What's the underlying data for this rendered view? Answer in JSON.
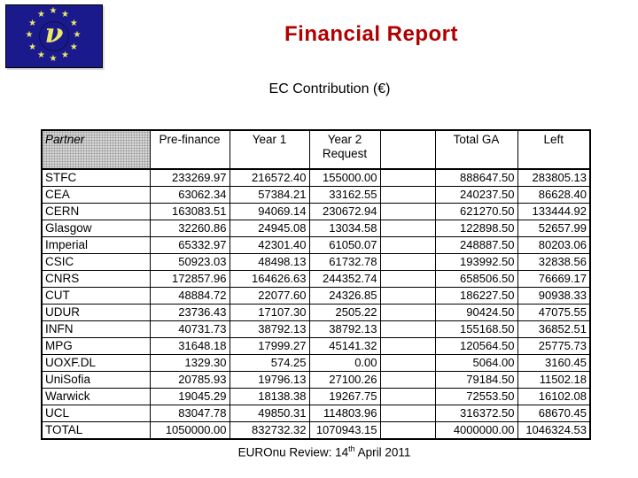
{
  "logo": {
    "nu_symbol": "ν",
    "flag_blue": "#1a1a8c",
    "star_color": "#ece86b",
    "star_glyph": "★"
  },
  "title": {
    "text": "Financial Report",
    "color": "#b00000"
  },
  "subtitle": {
    "text": "EC Contribution (€)"
  },
  "table": {
    "columns": [
      "Partner",
      "Pre-finance",
      "Year 1",
      "Year 2 Request",
      "",
      "Total GA",
      "Left"
    ],
    "rows": [
      {
        "partner": "STFC",
        "pre_finance": "233269.97",
        "year1": "216572.40",
        "year2": "155000.00",
        "spacer": "",
        "total_ga": "888647.50",
        "left": "283805.13"
      },
      {
        "partner": "CEA",
        "pre_finance": "63062.34",
        "year1": "57384.21",
        "year2": "33162.55",
        "spacer": "",
        "total_ga": "240237.50",
        "left": "86628.40"
      },
      {
        "partner": "CERN",
        "pre_finance": "163083.51",
        "year1": "94069.14",
        "year2": "230672.94",
        "spacer": "",
        "total_ga": "621270.50",
        "left": "133444.92"
      },
      {
        "partner": "Glasgow",
        "pre_finance": "32260.86",
        "year1": "24945.08",
        "year2": "13034.58",
        "spacer": "",
        "total_ga": "122898.50",
        "left": "52657.99"
      },
      {
        "partner": "Imperial",
        "pre_finance": "65332.97",
        "year1": "42301.40",
        "year2": "61050.07",
        "spacer": "",
        "total_ga": "248887.50",
        "left": "80203.06"
      },
      {
        "partner": "CSIC",
        "pre_finance": "50923.03",
        "year1": "48498.13",
        "year2": "61732.78",
        "spacer": "",
        "total_ga": "193992.50",
        "left": "32838.56"
      },
      {
        "partner": "CNRS",
        "pre_finance": "172857.96",
        "year1": "164626.63",
        "year2": "244352.74",
        "spacer": "",
        "total_ga": "658506.50",
        "left": "76669.17"
      },
      {
        "partner": "CUT",
        "pre_finance": "48884.72",
        "year1": "22077.60",
        "year2": "24326.85",
        "spacer": "",
        "total_ga": "186227.50",
        "left": "90938.33"
      },
      {
        "partner": "UDUR",
        "pre_finance": "23736.43",
        "year1": "17107.30",
        "year2": "2505.22",
        "spacer": "",
        "total_ga": "90424.50",
        "left": "47075.55"
      },
      {
        "partner": "INFN",
        "pre_finance": "40731.73",
        "year1": "38792.13",
        "year2": "38792.13",
        "spacer": "",
        "total_ga": "155168.50",
        "left": "36852.51"
      },
      {
        "partner": "MPG",
        "pre_finance": "31648.18",
        "year1": "17999.27",
        "year2": "45141.32",
        "spacer": "",
        "total_ga": "120564.50",
        "left": "25775.73"
      },
      {
        "partner": "UOXF.DL",
        "pre_finance": "1329.30",
        "year1": "574.25",
        "year2": "0.00",
        "spacer": "",
        "total_ga": "5064.00",
        "left": "3160.45"
      },
      {
        "partner": "UniSofia",
        "pre_finance": "20785.93",
        "year1": "19796.13",
        "year2": "27100.26",
        "spacer": "",
        "total_ga": "79184.50",
        "left": "11502.18"
      },
      {
        "partner": "Warwick",
        "pre_finance": "19045.29",
        "year1": "18138.38",
        "year2": "19267.75",
        "spacer": "",
        "total_ga": "72553.50",
        "left": "16102.08"
      },
      {
        "partner": "UCL",
        "pre_finance": "83047.78",
        "year1": "49850.31",
        "year2": "114803.96",
        "spacer": "",
        "total_ga": "316372.50",
        "left": "68670.45"
      },
      {
        "partner": "TOTAL",
        "pre_finance": "1050000.00",
        "year1": "832732.32",
        "year2": "1070943.15",
        "spacer": "",
        "total_ga": "4000000.00",
        "left": "1046324.53"
      }
    ]
  },
  "footer": {
    "prefix": "EUROnu Review: 14",
    "superscript": "th",
    "suffix": " April 2011"
  }
}
